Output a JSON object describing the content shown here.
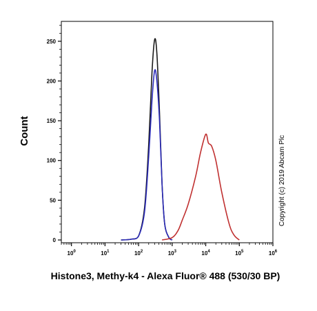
{
  "chart_data": {
    "type": "line",
    "title": "",
    "xlabel": "Histone3, Methy-k4 - Alexa Fluor® 488 (530/30 BP)",
    "ylabel": "Count",
    "x_scale": "log",
    "xlim": [
      0.5,
      1000000
    ],
    "ylim": [
      0,
      275
    ],
    "x_ticks": [
      1,
      10,
      100,
      1000,
      10000,
      100000,
      1000000
    ],
    "x_tick_labels": [
      {
        "base": "10",
        "exp": "0"
      },
      {
        "base": "10",
        "exp": "1"
      },
      {
        "base": "10",
        "exp": "2"
      },
      {
        "base": "10",
        "exp": "3"
      },
      {
        "base": "10",
        "exp": "4"
      },
      {
        "base": "10",
        "exp": "5"
      },
      {
        "base": "10",
        "exp": "6"
      }
    ],
    "y_ticks": [
      0,
      50,
      100,
      150,
      200,
      250
    ],
    "y_tick_labels": [
      "0",
      "50",
      "100",
      "150",
      "200",
      "250"
    ],
    "grid": false,
    "annotation": "Copyright (c) 2019 Abcam Plc",
    "series": [
      {
        "color": "#1a1a1a",
        "x": [
          30,
          60,
          100,
          150,
          200,
          250,
          300,
          350,
          420,
          500,
          600,
          800,
          1000
        ],
        "y": [
          0,
          1,
          5,
          40,
          120,
          210,
          252,
          235,
          160,
          70,
          20,
          3,
          0
        ]
      },
      {
        "color": "#2a2ab8",
        "x": [
          30,
          60,
          100,
          150,
          200,
          250,
          300,
          350,
          420,
          500,
          600,
          800,
          1000
        ],
        "y": [
          0,
          1,
          5,
          35,
          105,
          175,
          213,
          200,
          150,
          70,
          20,
          3,
          0
        ]
      },
      {
        "color": "#c03030",
        "x": [
          500,
          1000,
          1500,
          2000,
          3000,
          5000,
          7000,
          10000,
          12000,
          15000,
          20000,
          30000,
          50000,
          70000,
          100000
        ],
        "y": [
          0,
          3,
          12,
          25,
          45,
          80,
          110,
          133,
          122,
          118,
          100,
          60,
          20,
          6,
          0
        ]
      }
    ]
  }
}
